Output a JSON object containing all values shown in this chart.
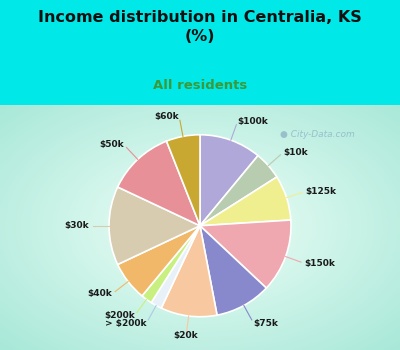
{
  "title": "Income distribution in Centralia, KS\n(%)",
  "subtitle": "All residents",
  "labels": [
    "$100k",
    "$10k",
    "$125k",
    "$150k",
    "$75k",
    "$20k",
    "> $200k",
    "$200k",
    "$40k",
    "$30k",
    "$50k",
    "$60k"
  ],
  "sizes": [
    11,
    5,
    8,
    13,
    10,
    10,
    2,
    2,
    7,
    14,
    12,
    6
  ],
  "colors": [
    "#b0a8d8",
    "#b8ccb0",
    "#f0ef90",
    "#f0a8b0",
    "#8888cc",
    "#f8c8a0",
    "#e8f0f8",
    "#c8f080",
    "#f0b868",
    "#d8ccb0",
    "#e89098",
    "#c8a830"
  ],
  "line_colors": [
    "#b0a8d8",
    "#b8ccb0",
    "#f0ef90",
    "#f0a8b0",
    "#8888cc",
    "#f8c8a0",
    "#b0c8e8",
    "#c8f080",
    "#f0b868",
    "#d8ccb0",
    "#e89098",
    "#c8a830"
  ],
  "bg_top": "#00e8e8",
  "bg_chart_corner": "#a0e8d8",
  "bg_chart_center": "#f0fff8",
  "title_color": "#101010",
  "subtitle_color": "#3a9a3a",
  "watermark": "City-Data.com",
  "watermark_color": "#90b8c8"
}
